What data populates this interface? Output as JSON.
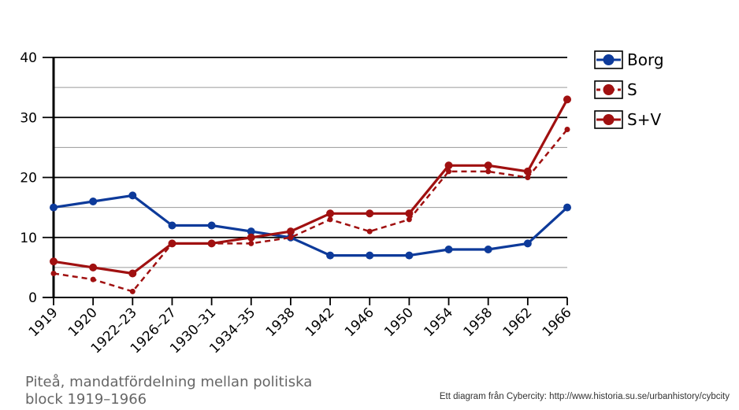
{
  "chart_data": {
    "type": "line",
    "categories": [
      "1919",
      "1920",
      "1922–23",
      "1926–27",
      "1930–31",
      "1934–35",
      "1938",
      "1942",
      "1946",
      "1950",
      "1954",
      "1958",
      "1962",
      "1966"
    ],
    "ylim": [
      0,
      40
    ],
    "yticks": [
      0,
      10,
      20,
      30,
      40
    ],
    "grid": true,
    "legend_position": "right",
    "series": [
      {
        "name": "Borg",
        "color": "#0d3a9a",
        "style": "solid",
        "values": [
          15,
          16,
          17,
          12,
          12,
          11,
          10,
          7,
          7,
          7,
          8,
          8,
          9,
          15
        ]
      },
      {
        "name": "S",
        "color": "#a01010",
        "style": "dashed",
        "values": [
          4,
          3,
          1,
          9,
          9,
          9,
          10,
          13,
          11,
          13,
          21,
          21,
          20,
          28
        ]
      },
      {
        "name": "S+V",
        "color": "#a01010",
        "style": "solid",
        "values": [
          6,
          5,
          4,
          9,
          9,
          10,
          11,
          14,
          14,
          14,
          22,
          22,
          21,
          33
        ]
      }
    ]
  },
  "caption": {
    "line1": "Piteå, mandatfördelning mellan politiska",
    "line2": "block 1919–1966"
  },
  "credit": "Ett diagram från Cybercity: http://www.historia.su.se/urbanhistory/cybcity"
}
